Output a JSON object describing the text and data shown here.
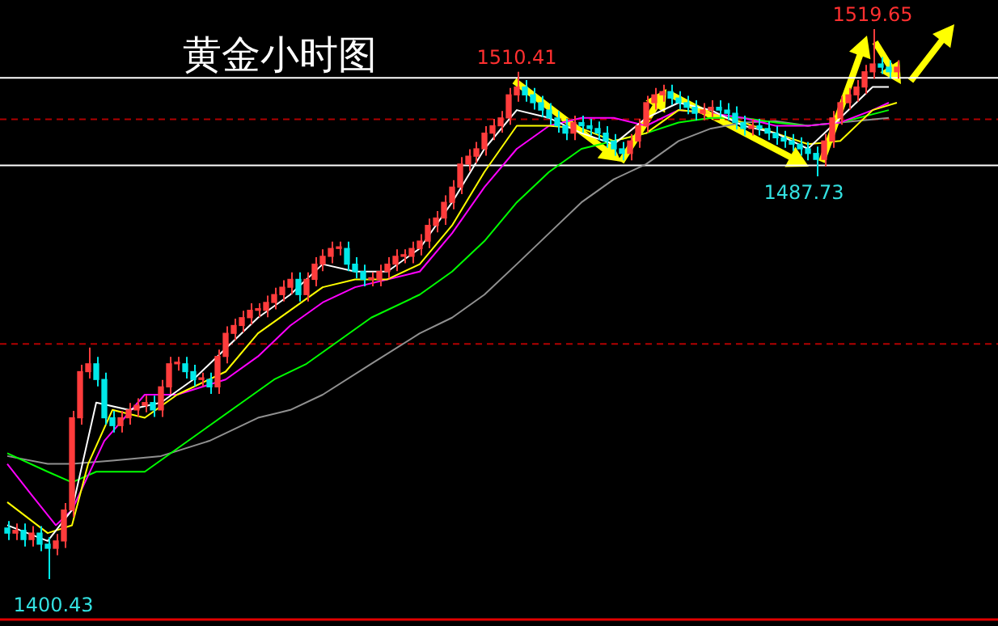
{
  "chart_data": {
    "type": "candlestick",
    "title": "黄金小时图",
    "categories": [
      null,
      null,
      null,
      null,
      null,
      null,
      null,
      null,
      null,
      null,
      null,
      null,
      null,
      null,
      null,
      null,
      null,
      null,
      null,
      null,
      null,
      null,
      null,
      null,
      null,
      null,
      null,
      null,
      null,
      null,
      null,
      null,
      null,
      null,
      null,
      null,
      null,
      null,
      null,
      null,
      null,
      null,
      null,
      null,
      null,
      null,
      null,
      null,
      null,
      null,
      null,
      null,
      null,
      null,
      null,
      null,
      null,
      null,
      null,
      null,
      null,
      null,
      null,
      null,
      null,
      null,
      null,
      null,
      null,
      null,
      null,
      null,
      null,
      null,
      null,
      null,
      null,
      null,
      null,
      null,
      null,
      null,
      null,
      null,
      null,
      null,
      null,
      null,
      null,
      null,
      null,
      null,
      null,
      null,
      null,
      null,
      null,
      null,
      null,
      null,
      null,
      null,
      null,
      null,
      null,
      null,
      null,
      null,
      null,
      null,
      null
    ],
    "ohlc": [
      [
        1411.5,
        1413,
        1408.9,
        1410.4
      ],
      [
        1410.4,
        1412.5,
        1408.9,
        1411
      ],
      [
        1411,
        1412.5,
        1407.5,
        1409
      ],
      [
        1409,
        1411.9,
        1407.5,
        1410.4
      ],
      [
        1410.4,
        1411.9,
        1406.5,
        1408
      ],
      [
        1408,
        1409.5,
        1400.43,
        1407.1
      ],
      [
        1407.1,
        1410.2,
        1405.6,
        1408.7
      ],
      [
        1408.7,
        1416.9,
        1407.2,
        1415.4
      ],
      [
        1415.4,
        1436.9,
        1413.9,
        1435.4
      ],
      [
        1435.4,
        1446.9,
        1433.9,
        1445.4
      ],
      [
        1445.4,
        1450.6,
        1443.9,
        1447.1
      ],
      [
        1447.1,
        1448.6,
        1442.2,
        1443.7
      ],
      [
        1443.7,
        1445.2,
        1433.9,
        1435.4
      ],
      [
        1435.4,
        1436.9,
        1432.2,
        1433.7
      ],
      [
        1433.7,
        1436.9,
        1432.2,
        1435.4
      ],
      [
        1435.4,
        1438.6,
        1433.9,
        1437.1
      ],
      [
        1437.1,
        1439.6,
        1435.6,
        1438.1
      ],
      [
        1438.1,
        1440.2,
        1436.6,
        1438.7
      ],
      [
        1438.7,
        1440.2,
        1435.6,
        1437.1
      ],
      [
        1437.1,
        1443.6,
        1435.6,
        1442.1
      ],
      [
        1442.1,
        1448.6,
        1440.6,
        1447.1
      ],
      [
        1447.1,
        1448.6,
        1445.6,
        1447.1
      ],
      [
        1447.1,
        1448.6,
        1443.9,
        1445.4
      ],
      [
        1445.4,
        1446.9,
        1442.2,
        1443.7
      ],
      [
        1443.7,
        1445.2,
        1442.2,
        1443.7
      ],
      [
        1443.7,
        1445.2,
        1440.6,
        1442.1
      ],
      [
        1442.1,
        1450.2,
        1440.6,
        1448.7
      ],
      [
        1448.7,
        1455.2,
        1447.2,
        1453.7
      ],
      [
        1453.7,
        1456.9,
        1452.2,
        1455.4
      ],
      [
        1455.4,
        1458.6,
        1453.9,
        1457.1
      ],
      [
        1457.1,
        1460.2,
        1455.6,
        1458.7
      ],
      [
        1458.7,
        1460.2,
        1457.2,
        1458.7
      ],
      [
        1458.7,
        1461.9,
        1457.2,
        1460.4
      ],
      [
        1460.4,
        1463.6,
        1458.9,
        1462.1
      ],
      [
        1462.1,
        1465.2,
        1460.6,
        1463.7
      ],
      [
        1463.7,
        1466.9,
        1462.2,
        1465.4
      ],
      [
        1465.4,
        1466.9,
        1460.6,
        1462.1
      ],
      [
        1462.1,
        1466.9,
        1460.6,
        1465.4
      ],
      [
        1465.4,
        1470.2,
        1463.9,
        1468.7
      ],
      [
        1468.7,
        1471.9,
        1467.2,
        1470.4
      ],
      [
        1470.4,
        1473.6,
        1468.9,
        1472.1
      ],
      [
        1472.1,
        1473.6,
        1470.6,
        1472.1
      ],
      [
        1472.1,
        1473.6,
        1467.2,
        1468.7
      ],
      [
        1468.7,
        1470.2,
        1465.6,
        1467.1
      ],
      [
        1467.1,
        1468.6,
        1463.9,
        1465.4
      ],
      [
        1465.4,
        1466.9,
        1463.9,
        1465.4
      ],
      [
        1465.4,
        1468.6,
        1463.9,
        1467.1
      ],
      [
        1467.1,
        1470.2,
        1465.6,
        1468.7
      ],
      [
        1468.7,
        1471.9,
        1467.2,
        1470.4
      ],
      [
        1470.4,
        1471.9,
        1468.9,
        1470.4
      ],
      [
        1470.4,
        1473.6,
        1468.9,
        1472.1
      ],
      [
        1472.1,
        1475.2,
        1470.6,
        1473.7
      ],
      [
        1473.7,
        1478.6,
        1472.2,
        1477.1
      ],
      [
        1477.1,
        1480.2,
        1475.6,
        1478.7
      ],
      [
        1478.7,
        1483.6,
        1477.2,
        1482.1
      ],
      [
        1482.1,
        1486.9,
        1480.6,
        1485.4
      ],
      [
        1485.4,
        1491.9,
        1483.9,
        1490.4
      ],
      [
        1490.4,
        1493.6,
        1488.9,
        1492.1
      ],
      [
        1492.1,
        1495.2,
        1490.6,
        1493.7
      ],
      [
        1493.7,
        1498.6,
        1492.2,
        1497.1
      ],
      [
        1497.1,
        1500.2,
        1495.6,
        1498.7
      ],
      [
        1498.7,
        1501.9,
        1497.2,
        1500.4
      ],
      [
        1500.4,
        1506.9,
        1498.9,
        1505.4
      ],
      [
        1505.4,
        1510.41,
        1503.9,
        1507.1
      ],
      [
        1507.1,
        1508.6,
        1503.9,
        1505.4
      ],
      [
        1505.4,
        1506.9,
        1502.2,
        1503.7
      ],
      [
        1503.7,
        1505.2,
        1500.6,
        1502.1
      ],
      [
        1502.1,
        1503.6,
        1498.9,
        1500.4
      ],
      [
        1500.4,
        1501.9,
        1497.2,
        1498.7
      ],
      [
        1498.7,
        1500.2,
        1495.6,
        1497.1
      ],
      [
        1497.1,
        1500.9,
        1495.6,
        1499.4
      ],
      [
        1499.4,
        1500.9,
        1497.2,
        1498.7
      ],
      [
        1498.7,
        1500.2,
        1496.6,
        1498.1
      ],
      [
        1498.1,
        1499.6,
        1495.6,
        1497.1
      ],
      [
        1497.1,
        1498.6,
        1493.9,
        1495.4
      ],
      [
        1495.4,
        1496.9,
        1492.2,
        1493.7
      ],
      [
        1493.7,
        1495.2,
        1491.2,
        1492.7
      ],
      [
        1492.7,
        1496.9,
        1491.2,
        1495.4
      ],
      [
        1495.4,
        1500.2,
        1493.9,
        1498.7
      ],
      [
        1498.7,
        1505.2,
        1497.2,
        1503.7
      ],
      [
        1503.7,
        1506.9,
        1502.2,
        1505.4
      ],
      [
        1505.4,
        1507.6,
        1503.9,
        1506.1
      ],
      [
        1506.1,
        1507.6,
        1503.2,
        1504.7
      ],
      [
        1504.7,
        1506.2,
        1502.2,
        1503.7
      ],
      [
        1503.7,
        1505.2,
        1501.2,
        1502.7
      ],
      [
        1502.7,
        1504.2,
        1499.9,
        1501.4
      ],
      [
        1501.4,
        1503.6,
        1499.9,
        1502.1
      ],
      [
        1502.1,
        1504.2,
        1500.6,
        1502.7
      ],
      [
        1502.7,
        1504.2,
        1500.6,
        1502.1
      ],
      [
        1502.1,
        1503.6,
        1499.9,
        1501.4
      ],
      [
        1501.4,
        1502.9,
        1497.9,
        1499.4
      ],
      [
        1499.4,
        1500.9,
        1496.6,
        1498.1
      ],
      [
        1498.1,
        1500.2,
        1496.6,
        1498.7
      ],
      [
        1498.7,
        1500.2,
        1496.6,
        1498.1
      ],
      [
        1498.1,
        1499.6,
        1495.6,
        1497.1
      ],
      [
        1497.1,
        1498.6,
        1494.6,
        1496.1
      ],
      [
        1496.1,
        1497.6,
        1493.9,
        1495.4
      ],
      [
        1495.4,
        1496.9,
        1493.2,
        1494.7
      ],
      [
        1494.7,
        1496.2,
        1492.2,
        1493.7
      ],
      [
        1493.7,
        1495.2,
        1491.2,
        1492.7
      ],
      [
        1492.7,
        1494.2,
        1487.73,
        1491.4
      ],
      [
        1491.4,
        1496.9,
        1489.9,
        1495.4
      ],
      [
        1495.4,
        1501.9,
        1493.9,
        1500.4
      ],
      [
        1500.4,
        1505.2,
        1498.9,
        1503.7
      ],
      [
        1503.7,
        1506.9,
        1502.2,
        1505.4
      ],
      [
        1505.4,
        1508.6,
        1503.9,
        1507.1
      ],
      [
        1507.1,
        1511.9,
        1505.6,
        1510.4
      ],
      [
        1510.4,
        1519.65,
        1508.9,
        1512.1
      ],
      [
        1512.1,
        1513.6,
        1509.9,
        1511.4
      ],
      [
        1511.4,
        1512.9,
        1508.9,
        1510.4
      ],
      [
        1510.4,
        1512.9,
        1508.9,
        1511.4
      ]
    ],
    "series": [
      {
        "type": "line",
        "color": "#ffffff",
        "values": [
          1412.1,
          null,
          null,
          null,
          null,
          1408.7,
          null,
          null,
          1415.4,
          null,
          null,
          1438.7,
          null,
          null,
          null,
          1437.1,
          null,
          null,
          null,
          1438.7,
          null,
          null,
          null,
          1443.7,
          null,
          null,
          null,
          1450.4,
          null,
          null,
          null,
          1457.1,
          null,
          null,
          null,
          1462.1,
          null,
          null,
          null,
          1468.7,
          null,
          null,
          null,
          1467.1,
          null,
          null,
          null,
          1467.1,
          null,
          null,
          null,
          1472.1,
          null,
          null,
          null,
          1482.1,
          null,
          null,
          null,
          1493.7,
          null,
          null,
          null,
          1502.1,
          null,
          null,
          null,
          1500.4,
          null,
          null,
          null,
          1497.1,
          null,
          null,
          null,
          1494.7,
          null,
          null,
          null,
          1500.4,
          null,
          null,
          null,
          1503.7,
          null,
          null,
          null,
          1502.1,
          null,
          null,
          null,
          1498.7,
          null,
          null,
          null,
          1497.1,
          null,
          null,
          null,
          1493.7,
          null,
          null,
          null,
          1500.4,
          null,
          null,
          null,
          1507.1,
          null,
          1507.1,
          null
        ]
      },
      {
        "type": "line",
        "color": "#ffff00",
        "values": [
          1417.1,
          null,
          null,
          null,
          null,
          1410.4,
          null,
          null,
          1412.1,
          null,
          1425.4,
          null,
          null,
          1437.1,
          null,
          null,
          null,
          1435.4,
          null,
          null,
          null,
          1440.4,
          null,
          null,
          null,
          null,
          null,
          1445.4,
          null,
          null,
          null,
          1453.7,
          null,
          null,
          null,
          1458.7,
          null,
          null,
          null,
          1463.7,
          null,
          null,
          null,
          1465.4,
          null,
          null,
          null,
          1465.4,
          null,
          null,
          null,
          1468.7,
          null,
          null,
          null,
          1477.1,
          null,
          null,
          null,
          1488.7,
          null,
          null,
          null,
          1498.7,
          null,
          null,
          null,
          1498.7,
          null,
          null,
          null,
          1498.1,
          null,
          null,
          null,
          1495.4,
          null,
          null,
          null,
          1497.1,
          null,
          null,
          null,
          1502.1,
          null,
          null,
          null,
          1501.4,
          null,
          null,
          null,
          1499.4,
          null,
          null,
          null,
          1497.1,
          null,
          null,
          null,
          1494.7,
          null,
          null,
          null,
          1495.4,
          null,
          null,
          null,
          1502.1,
          null,
          null,
          1503.7
        ]
      },
      {
        "type": "line",
        "color": "#ff00ff",
        "values": [
          1425.4,
          null,
          null,
          1418.7,
          null,
          null,
          1412.1,
          null,
          1415.4,
          null,
          null,
          null,
          1430.4,
          null,
          null,
          null,
          null,
          1440.4,
          null,
          null,
          null,
          1440.4,
          null,
          null,
          null,
          null,
          null,
          1443.7,
          null,
          null,
          null,
          1448.7,
          null,
          null,
          null,
          1455.4,
          null,
          null,
          null,
          1460.4,
          null,
          null,
          null,
          1463.7,
          null,
          null,
          null,
          1465.4,
          null,
          null,
          null,
          1467.1,
          null,
          null,
          null,
          1475.4,
          null,
          null,
          null,
          1485.4,
          null,
          null,
          null,
          1493.7,
          null,
          null,
          null,
          1498.7,
          null,
          null,
          null,
          1500.4,
          null,
          null,
          null,
          1500.4,
          null,
          null,
          null,
          1498.7,
          null,
          null,
          null,
          1502.1,
          null,
          null,
          null,
          1501.4,
          null,
          null,
          null,
          1500.4,
          null,
          null,
          null,
          1498.7,
          null,
          null,
          null,
          1498.7,
          null,
          null,
          null,
          1499.4,
          null,
          null,
          null,
          1502.1,
          null,
          1503.7,
          null
        ]
      },
      {
        "type": "line",
        "color": "#00ff00",
        "values": [
          1427.7,
          null,
          null,
          null,
          null,
          1423.7,
          null,
          null,
          1421.4,
          null,
          null,
          1423.7,
          null,
          null,
          null,
          null,
          null,
          1423.7,
          null,
          null,
          null,
          1428.7,
          null,
          null,
          null,
          1433.7,
          null,
          null,
          null,
          1438.7,
          null,
          null,
          null,
          1443.7,
          null,
          null,
          null,
          1447.1,
          null,
          null,
          null,
          1452.1,
          null,
          null,
          null,
          1457.1,
          null,
          null,
          null,
          null,
          null,
          1462.1,
          null,
          null,
          null,
          1467.1,
          null,
          null,
          null,
          1473.7,
          null,
          null,
          null,
          1482.1,
          null,
          null,
          null,
          1488.7,
          null,
          null,
          null,
          1493.7,
          null,
          null,
          null,
          1495.4,
          null,
          null,
          null,
          1497.1,
          null,
          null,
          null,
          1499.4,
          null,
          null,
          null,
          1500.4,
          null,
          null,
          null,
          1500.4,
          null,
          null,
          null,
          1499.4,
          null,
          null,
          null,
          1498.7,
          null,
          null,
          null,
          1499.4,
          null,
          null,
          null,
          null,
          null,
          1502.1,
          null
        ]
      },
      {
        "type": "line",
        "color": "#909090",
        "values": [
          1427.1,
          null,
          null,
          null,
          null,
          1425.4,
          null,
          null,
          1425.4,
          null,
          null,
          null,
          null,
          1426.1,
          null,
          null,
          null,
          null,
          null,
          1427.1,
          null,
          null,
          null,
          null,
          null,
          1430.4,
          null,
          null,
          null,
          null,
          null,
          1435.4,
          null,
          null,
          null,
          1437.1,
          null,
          null,
          null,
          1440.4,
          null,
          null,
          null,
          null,
          null,
          1447.1,
          null,
          null,
          null,
          null,
          null,
          1453.7,
          null,
          null,
          null,
          1457.1,
          null,
          null,
          null,
          1462.1,
          null,
          null,
          null,
          1468.7,
          null,
          null,
          null,
          1475.4,
          null,
          null,
          null,
          1482.1,
          null,
          null,
          null,
          1487.1,
          null,
          null,
          null,
          1490.4,
          null,
          null,
          null,
          1495.4,
          null,
          null,
          null,
          1498.1,
          null,
          null,
          null,
          1499.4,
          null,
          null,
          null,
          1499.7,
          null,
          null,
          null,
          1498.7,
          null,
          null,
          null,
          1499.4,
          null,
          null,
          null,
          null,
          null,
          1500.4,
          null
        ]
      }
    ],
    "ref_lines": [
      {
        "axis": "y",
        "value": 1509.1,
        "color": "#ffffff",
        "line_style": "solid"
      },
      {
        "axis": "y",
        "value": 1490.1,
        "color": "#ffffff",
        "line_style": "solid"
      },
      {
        "axis": "y",
        "value": 1500.1,
        "color": "#b00000",
        "line_style": "dashed"
      },
      {
        "axis": "y",
        "value": 1451.4,
        "color": "#b00000",
        "line_style": "dashed"
      }
    ],
    "annotations": [
      {
        "text": "1510.41",
        "y": 1510.41
      },
      {
        "text": "1519.65",
        "y": 1519.65
      },
      "1487.73",
      "1400.43"
    ],
    "tick_labels": false
  }
}
